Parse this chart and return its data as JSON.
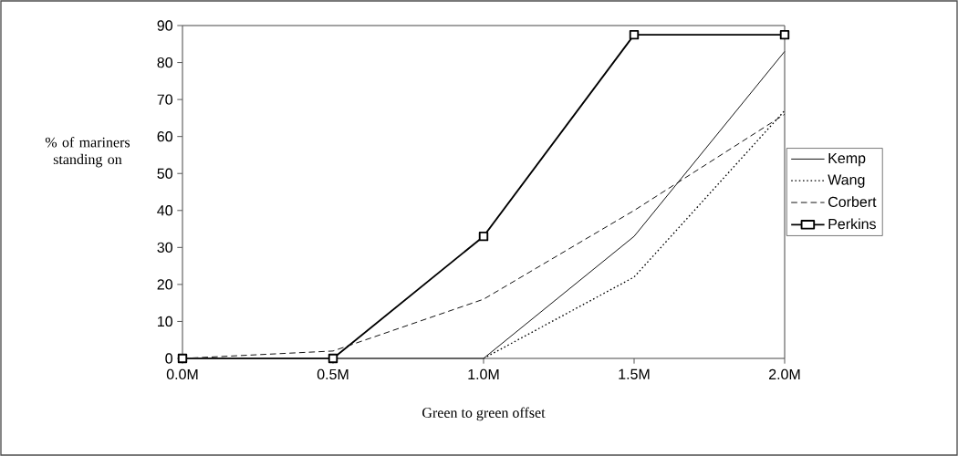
{
  "chart_data": {
    "type": "line",
    "xlabel": "Green to green offset",
    "ylabel": "% of mariners standing on",
    "categories": [
      "0.0M",
      "0.5M",
      "1.0M",
      "1.5M",
      "2.0M"
    ],
    "series": [
      {
        "name": "Kemp",
        "color": "#000000",
        "line_style": "solid",
        "marker": "none",
        "values": [
          0,
          0,
          0,
          33,
          83
        ]
      },
      {
        "name": "Wang",
        "color": "#000000",
        "line_style": "dotted",
        "marker": "none",
        "values": [
          null,
          null,
          0,
          22,
          67
        ]
      },
      {
        "name": "Corbert",
        "color": "#000000",
        "line_style": "dashed",
        "marker": "none",
        "values": [
          0,
          2,
          16,
          40,
          66
        ]
      },
      {
        "name": "Perkins",
        "color": "#000000",
        "line_style": "solid",
        "marker": "square",
        "values": [
          0,
          0,
          33,
          87.5,
          87.5
        ]
      }
    ],
    "ylim": [
      0,
      90
    ],
    "yticks": [
      0,
      10,
      20,
      30,
      40,
      50,
      60,
      70,
      80,
      90
    ],
    "grid": false,
    "legend": "right"
  }
}
